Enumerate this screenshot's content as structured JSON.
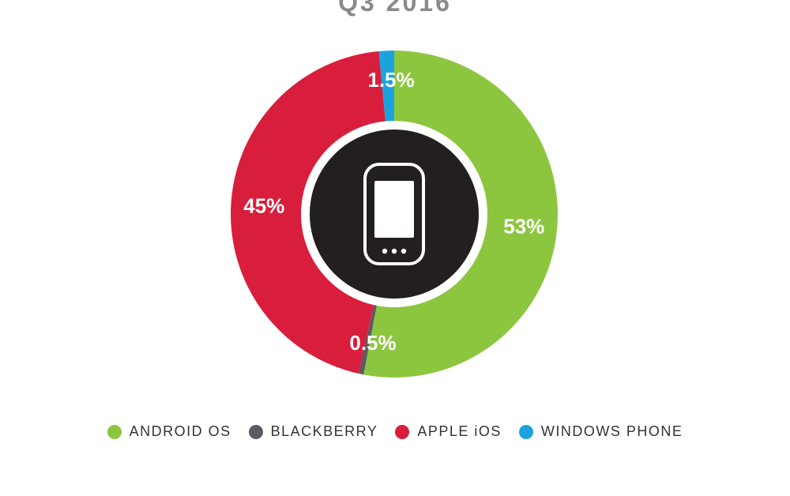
{
  "title": "Q3 2016",
  "colors": {
    "center_ring": "#ffffff",
    "center_disc": "#231f20",
    "phone_icon": "#ffffff"
  },
  "center_icon": "smartphone-icon",
  "chart_data": {
    "type": "pie",
    "title": "Q3 2016",
    "donut": true,
    "series": [
      {
        "name": "ANDROID OS",
        "value": 53,
        "label": "53%",
        "color": "#8cc63f"
      },
      {
        "name": "BLACKBERRY",
        "value": 0.5,
        "label": "0.5%",
        "color": "#5a5b63"
      },
      {
        "name": "APPLE iOS",
        "value": 45,
        "label": "45%",
        "color": "#d81e3c"
      },
      {
        "name": "WINDOWS PHONE",
        "value": 1.5,
        "label": "1.5%",
        "color": "#1aa3df"
      }
    ],
    "legend_position": "bottom"
  }
}
